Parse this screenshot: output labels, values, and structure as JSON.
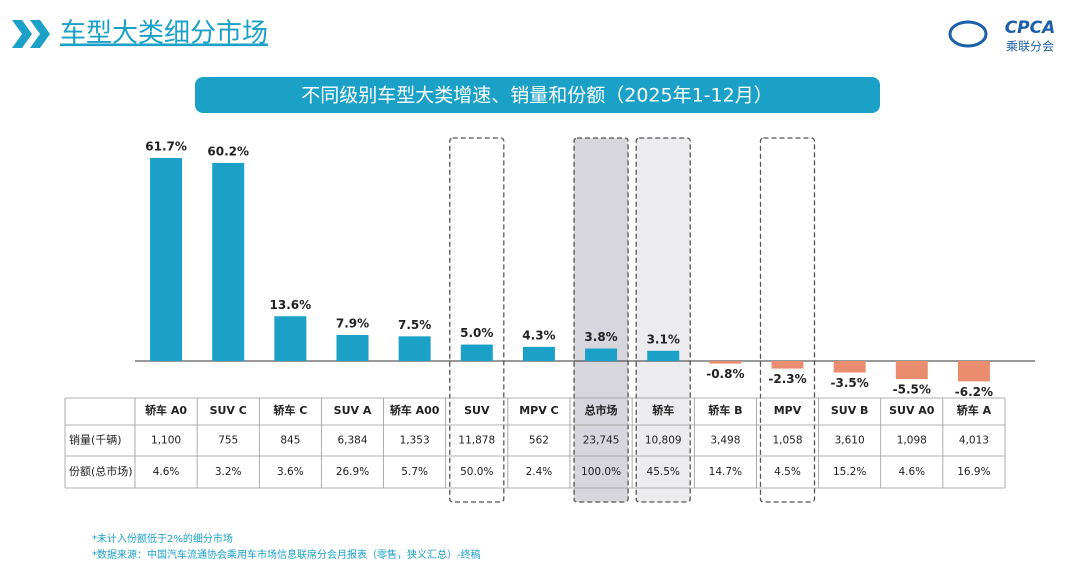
{
  "header": {
    "title": "车型大类细分市场",
    "logo": "CPCA",
    "logo_text": "乘联分会"
  },
  "chart_data": {
    "type": "bar",
    "title": "不同级别车型大类增速、销量和份额（2025年1-12月）",
    "categories": [
      "轿车 A0",
      "SUV C",
      "轿车 C",
      "SUV A",
      "轿车 A00",
      "SUV",
      "MPV C",
      "总市场",
      "轿车",
      "轿车 B",
      "MPV",
      "SUV B",
      "SUV A0",
      "轿车 A"
    ],
    "values": [
      61.7,
      60.2,
      13.6,
      7.9,
      7.5,
      5.0,
      4.3,
      3.8,
      3.1,
      -0.8,
      -2.3,
      -3.5,
      -5.5,
      -6.2
    ],
    "value_labels": [
      "61.7%",
      "60.2%",
      "13.6%",
      "7.9%",
      "7.5%",
      "5.0%",
      "4.3%",
      "3.8%",
      "3.1%",
      "-0.8%",
      "-2.3%",
      "-3.5%",
      "-5.5%",
      "-6.2%"
    ],
    "colors": {
      "positive": "#1ba1c7",
      "negative": "#ea8c6e"
    }
  },
  "table": {
    "rows": [
      {
        "label": "销量(千辆)",
        "cells": [
          "1,100",
          "755",
          "845",
          "6,384",
          "1,353",
          "11,878",
          "562",
          "23,745",
          "10,809",
          "3,498",
          "1,058",
          "3,610",
          "1,098",
          "4,013"
        ]
      },
      {
        "label": "份额(总市场)",
        "cells": [
          "4.6%",
          "3.2%",
          "3.6%",
          "26.9%",
          "5.7%",
          "50.0%",
          "2.4%",
          "100.0%",
          "45.5%",
          "14.7%",
          "4.5%",
          "15.2%",
          "4.6%",
          "16.9%"
        ]
      }
    ]
  },
  "footnotes": [
    "*未计入份额低于2%的细分市场",
    "*数据来源：中国汽车流通协会乘用车市场信息联席分会月报表（零售，狭义汇总）-终稿"
  ]
}
